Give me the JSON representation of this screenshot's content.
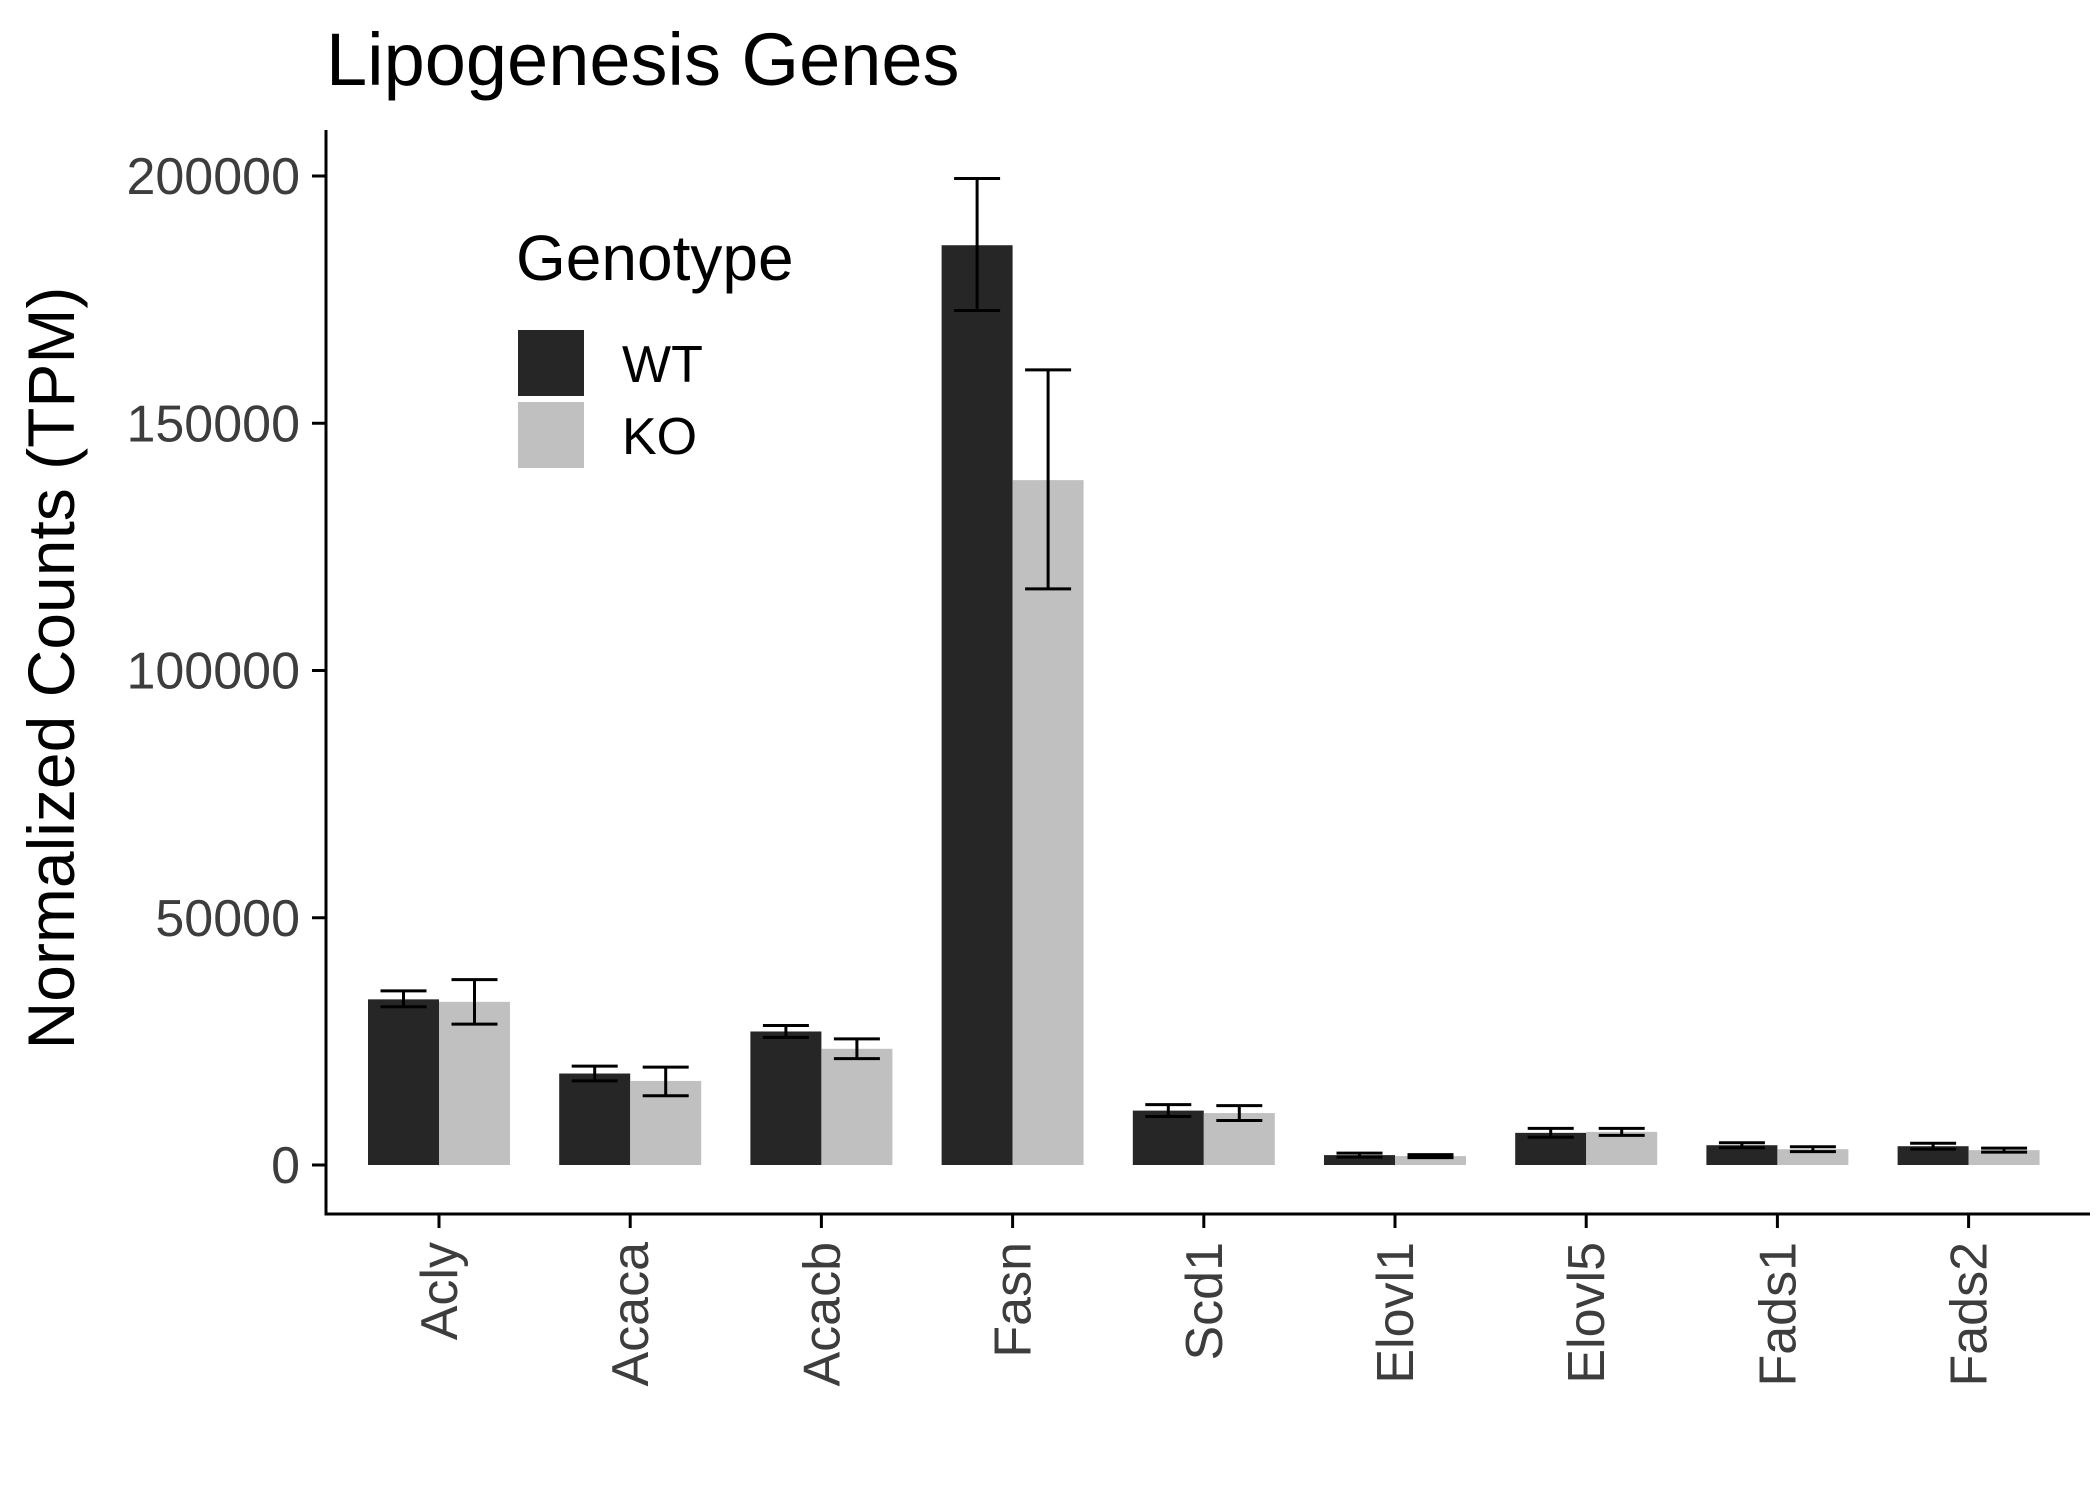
{
  "chart_data": {
    "type": "bar",
    "title": "Lipogenesis Genes",
    "xlabel": "",
    "ylabel": "Normalized Counts (TPM)",
    "ylim": [
      -10000,
      210000
    ],
    "yticks": [
      0,
      50000,
      100000,
      150000,
      200000
    ],
    "categories": [
      "Acly",
      "Acaca",
      "Acacb",
      "Fasn",
      "Scd1",
      "Elovl1",
      "Elovl5",
      "Fads1",
      "Fads2"
    ],
    "series": [
      {
        "name": "WT",
        "color": "#262626",
        "values": [
          33500,
          18500,
          27000,
          186000,
          11000,
          2000,
          6500,
          4000,
          3800
        ],
        "error_low": [
          32000,
          17000,
          25800,
          172800,
          9800,
          1600,
          5600,
          3500,
          3200
        ],
        "error_high": [
          35200,
          20000,
          28200,
          199500,
          12200,
          2400,
          7400,
          4500,
          4400
        ]
      },
      {
        "name": "KO",
        "color": "#c0c0c0",
        "values": [
          33000,
          17000,
          23500,
          138500,
          10500,
          1800,
          6700,
          3200,
          3000
        ],
        "error_low": [
          28500,
          14000,
          21500,
          116500,
          9000,
          1500,
          6000,
          2700,
          2600
        ],
        "error_high": [
          37500,
          19800,
          25500,
          160800,
          12000,
          2100,
          7400,
          3700,
          3400
        ]
      }
    ],
    "legend": {
      "title": "Genotype",
      "placement": "top-left"
    },
    "grid": false
  }
}
